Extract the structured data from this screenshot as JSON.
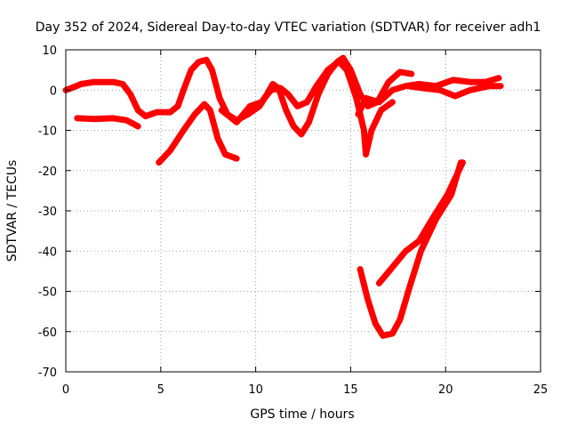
{
  "chart_data": {
    "type": "scatter",
    "title": "Day 352 of 2024, Sidereal Day-to-day VTEC variation (SDTVAR) for receiver adh1",
    "xlabel": "GPS time / hours",
    "ylabel": "SDTVAR / TECUs",
    "xlim": [
      0,
      25
    ],
    "ylim": [
      -70,
      10
    ],
    "xticks": [
      "0",
      "5",
      "10",
      "15",
      "20",
      "25"
    ],
    "yticks": [
      "10",
      "0",
      "-10",
      "-20",
      "-30",
      "-40",
      "-50",
      "-60",
      "-70"
    ],
    "grid": true,
    "color": "#ff0000",
    "series": [
      {
        "points": [
          [
            0,
            0
          ],
          [
            0.3,
            0.5
          ],
          [
            0.8,
            1.5
          ],
          [
            1.5,
            2
          ],
          [
            2.5,
            2
          ],
          [
            3,
            1.5
          ],
          [
            3.4,
            -1
          ],
          [
            3.8,
            -5
          ],
          [
            4.2,
            -6.5
          ],
          [
            4.8,
            -5.5
          ],
          [
            5.5,
            -5.5
          ],
          [
            5.9,
            -4
          ]
        ]
      },
      {
        "points": [
          [
            0.6,
            -7
          ],
          [
            1.5,
            -7.2
          ],
          [
            2.5,
            -7
          ],
          [
            3.2,
            -7.5
          ],
          [
            3.8,
            -9
          ]
        ]
      },
      {
        "points": [
          [
            4.9,
            -18
          ],
          [
            5.5,
            -15
          ],
          [
            6.2,
            -10
          ],
          [
            6.8,
            -6
          ],
          [
            7.3,
            -3.5
          ],
          [
            7.6,
            -5
          ],
          [
            8,
            -12
          ],
          [
            8.4,
            -16
          ],
          [
            9,
            -17
          ]
        ]
      },
      {
        "points": [
          [
            5.9,
            -4
          ],
          [
            6.2,
            0
          ],
          [
            6.6,
            5
          ],
          [
            7,
            7
          ],
          [
            7.4,
            7.5
          ],
          [
            7.7,
            5
          ],
          [
            8.1,
            -2
          ],
          [
            8.5,
            -6
          ],
          [
            9,
            -7.5
          ],
          [
            9.6,
            -6
          ],
          [
            10.2,
            -4
          ],
          [
            10.6,
            -1
          ],
          [
            10.9,
            1.5
          ],
          [
            11.2,
            0.5
          ],
          [
            11.6,
            -5
          ],
          [
            12,
            -9
          ],
          [
            12.4,
            -11
          ],
          [
            12.8,
            -8
          ],
          [
            13.3,
            -1
          ],
          [
            13.8,
            4
          ],
          [
            14.3,
            7
          ],
          [
            14.6,
            8
          ],
          [
            15,
            5
          ],
          [
            15.5,
            -1
          ],
          [
            15.9,
            -4
          ],
          [
            16.4,
            -3
          ],
          [
            17,
            2
          ],
          [
            17.6,
            4.5
          ],
          [
            18.2,
            4
          ]
        ]
      },
      {
        "points": [
          [
            8.2,
            -5
          ],
          [
            9,
            -8
          ],
          [
            9.7,
            -4
          ],
          [
            10.3,
            -3
          ],
          [
            10.8,
            0
          ],
          [
            11.3,
            0.5
          ],
          [
            11.7,
            -1
          ],
          [
            12.2,
            -4
          ],
          [
            12.7,
            -3
          ],
          [
            13.2,
            1
          ],
          [
            13.8,
            5
          ],
          [
            14.5,
            7.5
          ]
        ]
      },
      {
        "points": [
          [
            14.4,
            7
          ],
          [
            14.8,
            5
          ],
          [
            15.3,
            -2
          ],
          [
            15.7,
            -10
          ],
          [
            15.8,
            -16
          ],
          [
            16.1,
            -10
          ],
          [
            16.6,
            -5
          ],
          [
            17.2,
            -3
          ]
        ]
      },
      {
        "points": [
          [
            15.4,
            -6
          ],
          [
            15.8,
            -2
          ],
          [
            16.5,
            -3
          ],
          [
            17.2,
            0
          ],
          [
            17.9,
            1
          ],
          [
            18.6,
            1.5
          ],
          [
            19.5,
            1
          ],
          [
            20.4,
            2.5
          ],
          [
            21.3,
            2
          ],
          [
            22.1,
            2
          ],
          [
            22.8,
            3
          ]
        ]
      },
      {
        "points": [
          [
            18,
            1
          ],
          [
            18.8,
            0.5
          ],
          [
            19.7,
            0
          ],
          [
            20.5,
            -1.5
          ],
          [
            21.3,
            0
          ],
          [
            22.3,
            1
          ],
          [
            22.9,
            1
          ]
        ]
      },
      {
        "points": [
          [
            15.5,
            -44.5
          ],
          [
            15.9,
            -52
          ],
          [
            16.3,
            -58
          ],
          [
            16.7,
            -61
          ],
          [
            17.2,
            -60.5
          ],
          [
            17.6,
            -57
          ],
          [
            18.1,
            -49
          ],
          [
            18.7,
            -40
          ],
          [
            19.5,
            -32
          ],
          [
            20.3,
            -26
          ],
          [
            20.8,
            -18
          ]
        ]
      },
      {
        "points": [
          [
            16.5,
            -48
          ],
          [
            17.2,
            -44
          ],
          [
            17.9,
            -40
          ],
          [
            18.6,
            -37.5
          ],
          [
            19.3,
            -32
          ],
          [
            20.1,
            -26
          ],
          [
            20.6,
            -21
          ],
          [
            20.9,
            -18
          ]
        ]
      }
    ]
  }
}
